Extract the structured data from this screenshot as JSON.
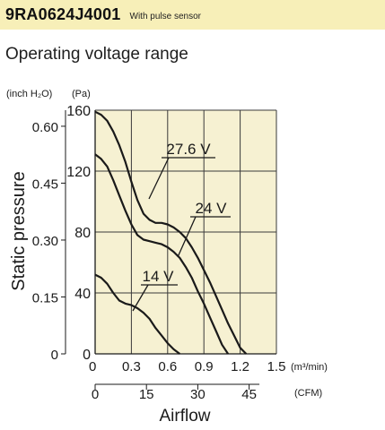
{
  "header": {
    "model": "9RA0624J4001",
    "subtitle": "With pulse sensor"
  },
  "section_title": "Operating voltage range",
  "chart_data": {
    "type": "line",
    "title": "",
    "xlabel": "Airflow",
    "ylabel": "Static pressure",
    "x_unit_primary": "(m³/min)",
    "x_unit_secondary": "(CFM)",
    "y_unit_left": "(inch H₂O)",
    "y_unit_right": "(Pa)",
    "xlim": [
      0,
      1.5
    ],
    "ylim": [
      0,
      160
    ],
    "x_ticks": [
      "0",
      "0.3",
      "0.6",
      "0.9",
      "1.2",
      "1.5"
    ],
    "x_tick_values": [
      0,
      0.3,
      0.6,
      0.9,
      1.2,
      1.5
    ],
    "cfm_ticks": [
      "0",
      "15",
      "30",
      "45"
    ],
    "cfm_tick_values": [
      0,
      15,
      30,
      45
    ],
    "y_ticks_pa": [
      "0",
      "40",
      "80",
      "120",
      "160"
    ],
    "y_tick_values_pa": [
      0,
      40,
      80,
      120,
      160
    ],
    "y_ticks_inch": [
      "0",
      "0.15",
      "0.30",
      "0.45",
      "0.60"
    ],
    "y_tick_values_inch": [
      0,
      0.15,
      0.3,
      0.45,
      0.6
    ],
    "grid": true,
    "plot_background": "#f6f1d2",
    "line_color": "#1a1a1a",
    "series": [
      {
        "name": "27.6 V",
        "x": [
          0,
          0.05,
          0.1,
          0.15,
          0.2,
          0.25,
          0.3,
          0.35,
          0.4,
          0.45,
          0.5,
          0.55,
          0.6,
          0.65,
          0.7,
          0.75,
          0.8,
          0.85,
          0.9,
          0.95,
          1.0,
          1.05,
          1.1,
          1.15,
          1.2,
          1.25
        ],
        "y": [
          159,
          157,
          153,
          146,
          137,
          126,
          113,
          101,
          92,
          88,
          86,
          86,
          85,
          83,
          80,
          76,
          70,
          63,
          55,
          47,
          38,
          29,
          20,
          12,
          4,
          0
        ]
      },
      {
        "name": "24 V",
        "x": [
          0,
          0.05,
          0.1,
          0.15,
          0.2,
          0.25,
          0.3,
          0.35,
          0.4,
          0.45,
          0.5,
          0.55,
          0.6,
          0.65,
          0.7,
          0.75,
          0.8,
          0.85,
          0.9,
          0.95,
          1.0,
          1.05,
          1.1
        ],
        "y": [
          131,
          128,
          123,
          114,
          104,
          94,
          85,
          78,
          75,
          74,
          73,
          72,
          70,
          67,
          63,
          57,
          50,
          41,
          33,
          24,
          15,
          6,
          0
        ]
      },
      {
        "name": "14 V",
        "x": [
          0,
          0.05,
          0.1,
          0.15,
          0.2,
          0.25,
          0.3,
          0.35,
          0.4,
          0.45,
          0.5,
          0.55,
          0.6,
          0.65,
          0.7
        ],
        "y": [
          52,
          50,
          46,
          40,
          35,
          33,
          32,
          30,
          27,
          23,
          17,
          12,
          7,
          3,
          0
        ]
      }
    ],
    "annotations": [
      {
        "text": "27.6 V"
      },
      {
        "text": "24 V"
      },
      {
        "text": "14 V"
      }
    ]
  }
}
